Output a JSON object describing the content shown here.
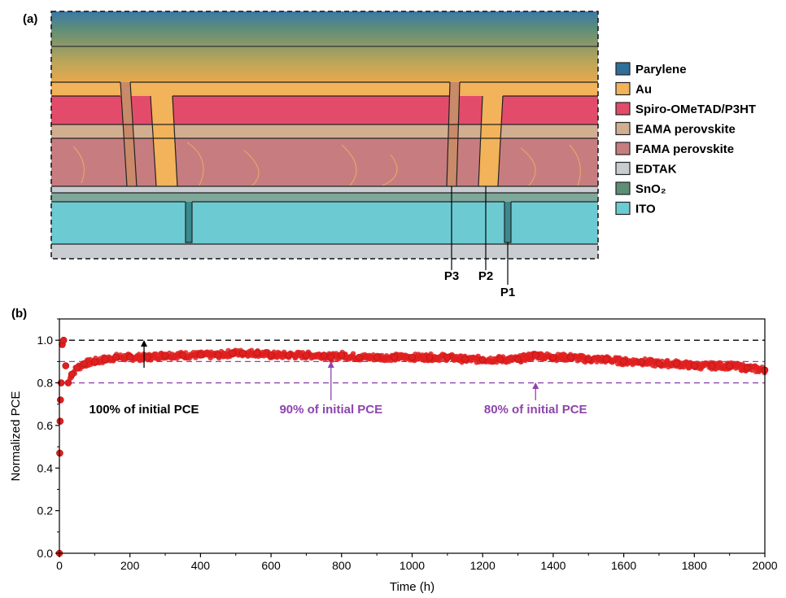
{
  "panel_a": {
    "label": "(a)",
    "legend": [
      {
        "name": "Parylene",
        "color": "#2f6f9a"
      },
      {
        "name": "Au",
        "color": "#f2b35a"
      },
      {
        "name": "Spiro-OMeTAD/P3HT",
        "color": "#e24c6a"
      },
      {
        "name": "EAMA perovskite",
        "color": "#d2ae90"
      },
      {
        "name": "FAMA perovskite",
        "color": "#c77d80"
      },
      {
        "name": "EDTAK",
        "color": "#c8ccd0"
      },
      {
        "name": "SnO₂",
        "color": "#5e8e77"
      },
      {
        "name": "ITO",
        "color": "#6ccbd2"
      }
    ],
    "scribe_labels": [
      "P3",
      "P2",
      "P1"
    ]
  },
  "panel_b": {
    "label": "(b)",
    "annotations": [
      {
        "text": "100% of initial PCE",
        "color": "#000000"
      },
      {
        "text": "90% of initial PCE",
        "color": "#8e44ad"
      },
      {
        "text": "80% of initial PCE",
        "color": "#8e44ad"
      }
    ]
  },
  "chart_data": {
    "type": "scatter",
    "xlabel": "Time (h)",
    "ylabel": "Normalized PCE",
    "xlim": [
      0,
      2000
    ],
    "ylim": [
      0.0,
      1.1
    ],
    "xticks": [
      0,
      200,
      400,
      600,
      800,
      1000,
      1200,
      1400,
      1600,
      1800,
      2000
    ],
    "yticks": [
      0.0,
      0.2,
      0.4,
      0.6,
      0.8,
      1.0
    ],
    "reference_lines": [
      {
        "y": 1.0,
        "color": "#000000",
        "style": "dashed"
      },
      {
        "y": 0.9,
        "color": "#8e44ad",
        "style": "dashed"
      },
      {
        "y": 0.8,
        "color": "#8e44ad",
        "style": "dashed"
      }
    ],
    "marker_color": "#e02020",
    "series": [
      {
        "x": [
          0,
          1,
          2,
          3,
          5,
          8,
          12,
          18,
          25,
          35,
          50,
          70,
          100,
          130,
          160,
          200,
          250,
          300,
          350,
          400,
          450,
          490,
          520,
          560,
          600,
          650,
          700,
          750,
          770,
          800,
          850,
          900,
          950,
          1000,
          1050,
          1100,
          1150,
          1200,
          1250,
          1300,
          1350,
          1400,
          1450,
          1500,
          1550,
          1600,
          1650,
          1700,
          1750,
          1800,
          1850,
          1900,
          1950,
          2000
        ],
        "y": [
          0.0,
          0.47,
          0.62,
          0.72,
          0.8,
          0.98,
          1.0,
          0.88,
          0.8,
          0.84,
          0.87,
          0.89,
          0.9,
          0.91,
          0.92,
          0.92,
          0.92,
          0.93,
          0.93,
          0.93,
          0.93,
          0.94,
          0.94,
          0.94,
          0.93,
          0.93,
          0.93,
          0.93,
          0.92,
          0.93,
          0.92,
          0.92,
          0.92,
          0.92,
          0.92,
          0.92,
          0.91,
          0.91,
          0.91,
          0.91,
          0.93,
          0.92,
          0.92,
          0.91,
          0.91,
          0.9,
          0.9,
          0.89,
          0.89,
          0.88,
          0.88,
          0.88,
          0.87,
          0.86
        ]
      }
    ]
  }
}
